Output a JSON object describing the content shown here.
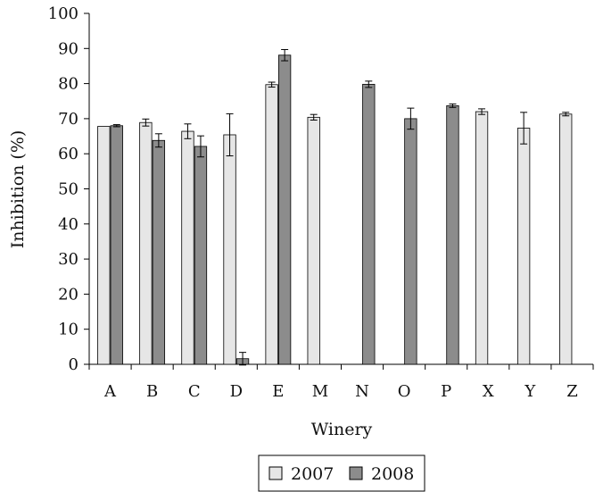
{
  "chart_data": {
    "type": "bar",
    "xlabel": "Winery",
    "ylabel": "Inhibition (%)",
    "ylim": [
      0,
      100
    ],
    "yticks": [
      "0",
      "10",
      "20",
      "30",
      "40",
      "50",
      "60",
      "70",
      "80",
      "90",
      "100"
    ],
    "categories": [
      "A",
      "B",
      "C",
      "D",
      "E",
      "M",
      "N",
      "O",
      "P",
      "X",
      "Y",
      "Z"
    ],
    "series": [
      {
        "name": "2007",
        "color": "#e6e6e6",
        "values": [
          67.8,
          68.9,
          66.4,
          65.4,
          79.7,
          70.4,
          null,
          null,
          null,
          72.0,
          67.3,
          71.3
        ],
        "errors": [
          0,
          1.0,
          2.1,
          6.0,
          0.7,
          0.8,
          null,
          null,
          null,
          0.8,
          4.5,
          0.5
        ]
      },
      {
        "name": "2008",
        "color": "#8c8c8c",
        "values": [
          68.0,
          63.8,
          62.1,
          1.6,
          88.1,
          null,
          79.8,
          70.0,
          73.7,
          null,
          null,
          null
        ],
        "errors": [
          0.3,
          1.9,
          3.0,
          1.8,
          1.6,
          null,
          0.9,
          3.0,
          0.5,
          null,
          null,
          null
        ]
      }
    ],
    "legend": {
      "position": "bottom-center",
      "labels": [
        "2007",
        "2008"
      ]
    },
    "grid": false
  }
}
